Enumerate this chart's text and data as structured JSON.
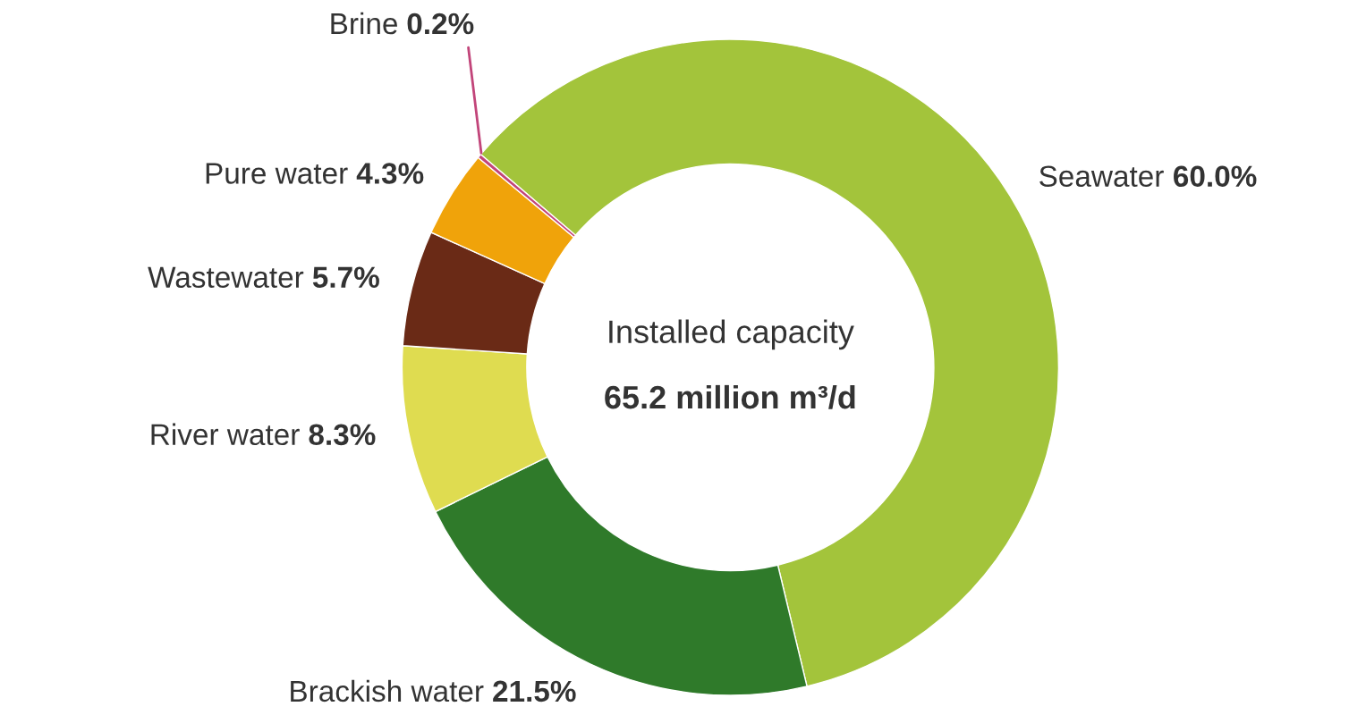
{
  "chart_data": {
    "type": "donut",
    "categories": [
      "Seawater",
      "Brackish water",
      "River water",
      "Wastewater",
      "Pure water",
      "Brine"
    ],
    "values": [
      60.0,
      21.5,
      8.3,
      5.7,
      4.3,
      0.2
    ],
    "value_labels": [
      "60.0%",
      "21.5%",
      "8.3%",
      "5.7%",
      "4.3%",
      "0.2%"
    ],
    "colors": [
      "#a3c43b",
      "#2f7a2a",
      "#dfdc50",
      "#6a2a16",
      "#f0a30a",
      "#c2457a"
    ],
    "annotations": [
      "Installed capacity",
      "65.2 million m³/d"
    ],
    "legend": false
  }
}
